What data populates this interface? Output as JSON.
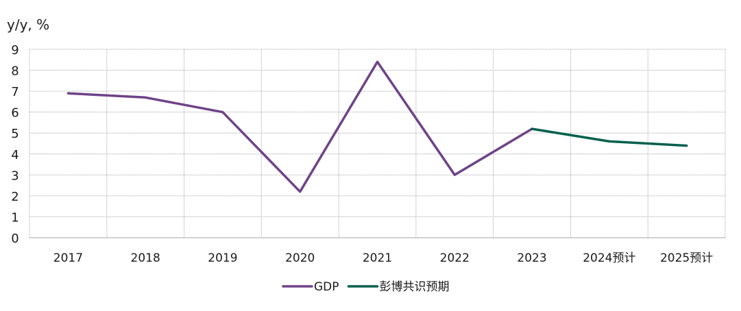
{
  "chart_data": {
    "type": "line",
    "ylabel": "y/y, %",
    "categories": [
      "2017",
      "2018",
      "2019",
      "2020",
      "2021",
      "2022",
      "2023",
      "2024预计",
      "2025预计"
    ],
    "ylim": [
      0,
      9
    ],
    "yticks": [
      0,
      1,
      2,
      3,
      4,
      5,
      6,
      7,
      8,
      9
    ],
    "grid": true,
    "legend_position": "bottom",
    "series": [
      {
        "name": "GDP",
        "color": "#6E4387",
        "values": [
          6.9,
          6.7,
          6.0,
          2.2,
          8.4,
          3.0,
          5.2,
          null,
          null
        ]
      },
      {
        "name": "彭博共识预期",
        "color": "#00604D",
        "values": [
          null,
          null,
          null,
          null,
          null,
          null,
          5.2,
          4.6,
          4.4
        ]
      }
    ]
  }
}
